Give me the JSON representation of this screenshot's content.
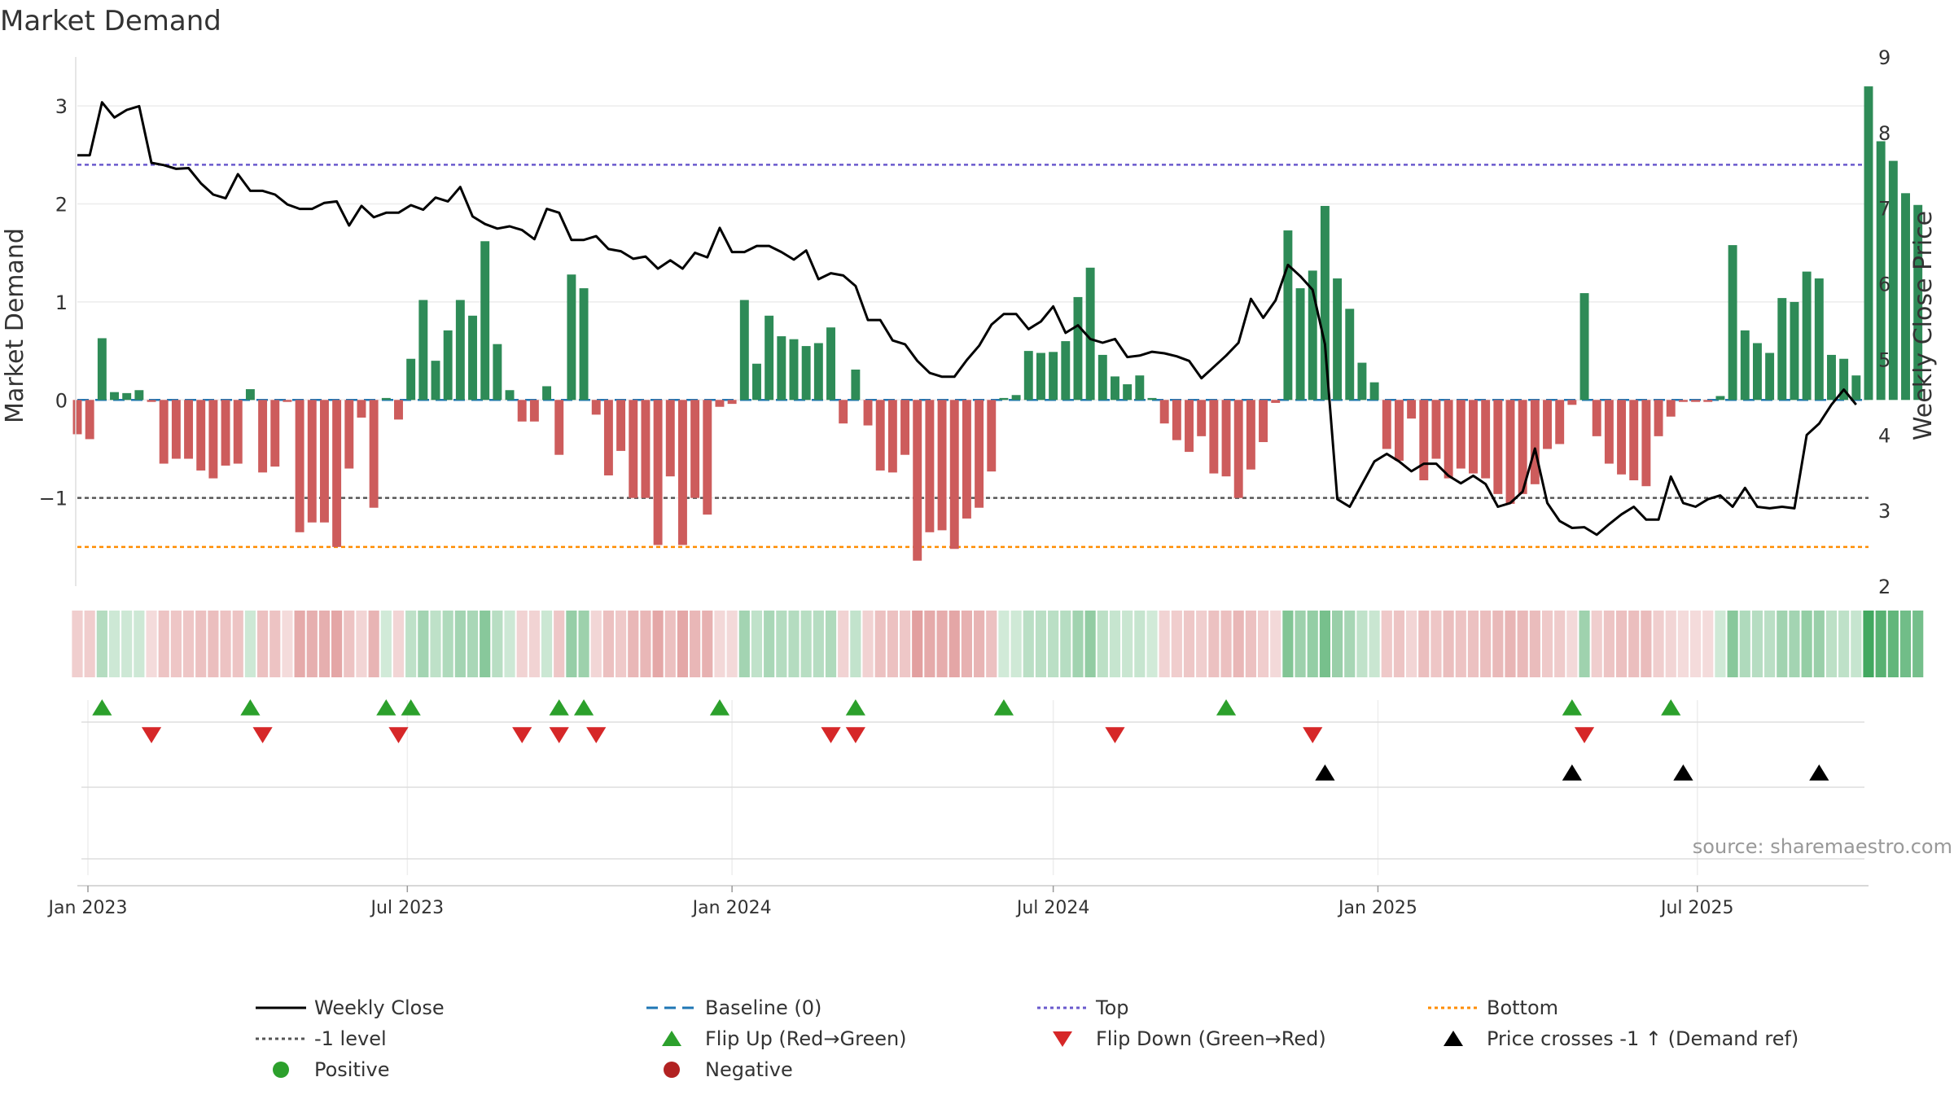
{
  "title": "Market Demand",
  "source_note": "source: sharemaestro.com",
  "colors": {
    "positive_bar": "#2e8b57",
    "negative_bar": "#cd5c5c",
    "price_line": "#000000",
    "baseline": "#1f77b4",
    "top_line": "#6a5acd",
    "bottom_line": "#ff8c00",
    "level_line": "#555555",
    "flip_up": "#2ca02c",
    "flip_down": "#d62728",
    "cross_marker": "#000000",
    "heat_pos": "#2e9e4f",
    "heat_neg": "#cd5c5c"
  },
  "legend": [
    {
      "key": "weekly_close",
      "label": "Weekly Close",
      "symbol": "solid-line"
    },
    {
      "key": "baseline",
      "label": "Baseline (0)",
      "symbol": "dashed-line"
    },
    {
      "key": "top",
      "label": "Top",
      "symbol": "dotted-line"
    },
    {
      "key": "bottom",
      "label": "Bottom",
      "symbol": "dotted-line"
    },
    {
      "key": "level",
      "label": "-1 level",
      "symbol": "dotted-line"
    },
    {
      "key": "flip_up",
      "label": "Flip Up (Red→Green)",
      "symbol": "triangle-up"
    },
    {
      "key": "flip_down",
      "label": "Flip Down (Green→Red)",
      "symbol": "triangle-down"
    },
    {
      "key": "cross",
      "label": "Price crosses -1 ↑ (Demand ref)",
      "symbol": "triangle-up"
    },
    {
      "key": "positive",
      "label": "Positive",
      "symbol": "circle"
    },
    {
      "key": "negative",
      "label": "Negative",
      "symbol": "circle"
    }
  ],
  "chart_data": {
    "type": "bar",
    "title": "Market Demand",
    "ylabel": "Market Demand",
    "y2label": "Weekly Close Price",
    "ylim": [
      -1.9,
      3.5
    ],
    "y2lim": [
      2,
      9
    ],
    "yticks": [
      -1,
      0,
      1,
      2,
      3
    ],
    "y2ticks": [
      2,
      3,
      4,
      5,
      6,
      7,
      8,
      9
    ],
    "x_start": "2022-12-26",
    "x_end": "2025-10-06",
    "first_week": "2022-12-26",
    "xticks": [
      {
        "date": "2023-01-01",
        "label": "Jan 2023"
      },
      {
        "date": "2023-07-01",
        "label": "Jul 2023"
      },
      {
        "date": "2024-01-01",
        "label": "Jan 2024"
      },
      {
        "date": "2024-07-01",
        "label": "Jul 2024"
      },
      {
        "date": "2025-01-01",
        "label": "Jan 2025"
      },
      {
        "date": "2025-07-01",
        "label": "Jul 2025"
      }
    ],
    "reference_lines": {
      "baseline": 0,
      "top": 2.4,
      "level": -1,
      "bottom": -1.5
    },
    "demand": [
      -0.35,
      -0.4,
      0.63,
      0.08,
      0.07,
      0.1,
      -0.02,
      -0.65,
      -0.6,
      -0.6,
      -0.72,
      -0.8,
      -0.67,
      -0.65,
      0.11,
      -0.74,
      -0.68,
      -0.02,
      -1.35,
      -1.25,
      -1.25,
      -1.5,
      -0.7,
      -0.18,
      -1.1,
      0.02,
      -0.2,
      0.42,
      1.02,
      0.4,
      0.71,
      1.02,
      0.86,
      1.62,
      0.57,
      0.1,
      -0.22,
      -0.22,
      0.14,
      -0.56,
      1.28,
      1.14,
      -0.15,
      -0.77,
      -0.52,
      -1.0,
      -1.0,
      -1.48,
      -0.78,
      -1.48,
      -1.0,
      -1.17,
      -0.07,
      -0.04,
      1.02,
      0.37,
      0.86,
      0.65,
      0.62,
      0.55,
      0.58,
      0.74,
      -0.24,
      0.31,
      -0.26,
      -0.72,
      -0.74,
      -0.56,
      -1.64,
      -1.35,
      -1.33,
      -1.52,
      -1.21,
      -1.1,
      -0.73,
      0.02,
      0.05,
      0.5,
      0.48,
      0.49,
      0.6,
      1.05,
      1.35,
      0.46,
      0.24,
      0.16,
      0.25,
      0.02,
      -0.24,
      -0.41,
      -0.53,
      -0.37,
      -0.75,
      -0.78,
      -1.0,
      -0.71,
      -0.43,
      -0.03,
      1.73,
      1.14,
      1.32,
      1.98,
      1.24,
      0.93,
      0.38,
      0.18,
      -0.5,
      -0.62,
      -0.19,
      -0.82,
      -0.6,
      -0.8,
      -0.7,
      -0.75,
      -0.8,
      -0.96,
      -1.06,
      -0.96,
      -0.86,
      -0.5,
      -0.45,
      -0.05,
      1.09,
      -0.37,
      -0.65,
      -0.76,
      -0.82,
      -0.88,
      -0.37,
      -0.17,
      -0.02,
      -0.02,
      -0.02,
      0.04,
      1.58,
      0.71,
      0.58,
      0.48,
      1.04,
      1.0,
      1.31,
      1.24,
      0.46,
      0.42,
      0.25,
      3.2,
      2.64,
      2.44,
      2.11,
      1.99
    ],
    "price": [
      7.7,
      7.7,
      8.4,
      8.2,
      8.3,
      8.35,
      7.6,
      7.57,
      7.52,
      7.53,
      7.33,
      7.18,
      7.13,
      7.45,
      7.23,
      7.23,
      7.18,
      7.05,
      6.99,
      6.99,
      7.07,
      7.09,
      6.77,
      7.03,
      6.88,
      6.94,
      6.94,
      7.04,
      6.98,
      7.14,
      7.09,
      7.28,
      6.89,
      6.79,
      6.73,
      6.76,
      6.71,
      6.59,
      6.99,
      6.94,
      6.58,
      6.58,
      6.63,
      6.46,
      6.43,
      6.33,
      6.36,
      6.2,
      6.31,
      6.2,
      6.41,
      6.35,
      6.74,
      6.42,
      6.42,
      6.5,
      6.5,
      6.42,
      6.32,
      6.44,
      6.06,
      6.14,
      6.11,
      5.97,
      5.52,
      5.52,
      5.25,
      5.2,
      4.98,
      4.82,
      4.77,
      4.77,
      4.99,
      5.18,
      5.46,
      5.6,
      5.6,
      5.4,
      5.5,
      5.7,
      5.35,
      5.45,
      5.27,
      5.22,
      5.27,
      5.03,
      5.05,
      5.1,
      5.08,
      5.04,
      4.98,
      4.75,
      4.9,
      5.05,
      5.22,
      5.8,
      5.55,
      5.78,
      6.25,
      6.1,
      5.92,
      5.2,
      3.15,
      3.05,
      3.35,
      3.65,
      3.75,
      3.65,
      3.52,
      3.62,
      3.62,
      3.46,
      3.36,
      3.46,
      3.35,
      3.05,
      3.1,
      3.25,
      3.82,
      3.1,
      2.86,
      2.77,
      2.78,
      2.68,
      2.82,
      2.95,
      3.05,
      2.88,
      2.88,
      3.45,
      3.1,
      3.05,
      3.15,
      3.2,
      3.05,
      3.3,
      3.05,
      3.03,
      3.05,
      3.03,
      4.0,
      4.15,
      4.4,
      4.6,
      4.4
    ],
    "flip_up": [
      "2023-01-09",
      "2023-04-03",
      "2023-06-19",
      "2023-07-03",
      "2023-09-25",
      "2023-10-09",
      "2023-12-25",
      "2024-03-11",
      "2024-06-03",
      "2024-10-07",
      "2025-04-21",
      "2025-06-16"
    ],
    "flip_down": [
      "2023-02-06",
      "2023-04-10",
      "2023-06-26",
      "2023-09-04",
      "2023-09-25",
      "2023-10-16",
      "2024-02-26",
      "2024-03-11",
      "2024-08-05",
      "2024-11-25",
      "2025-04-28"
    ],
    "price_crosses_up": [
      "2024-12-02",
      "2025-04-21",
      "2025-06-23",
      "2025-09-08"
    ]
  }
}
